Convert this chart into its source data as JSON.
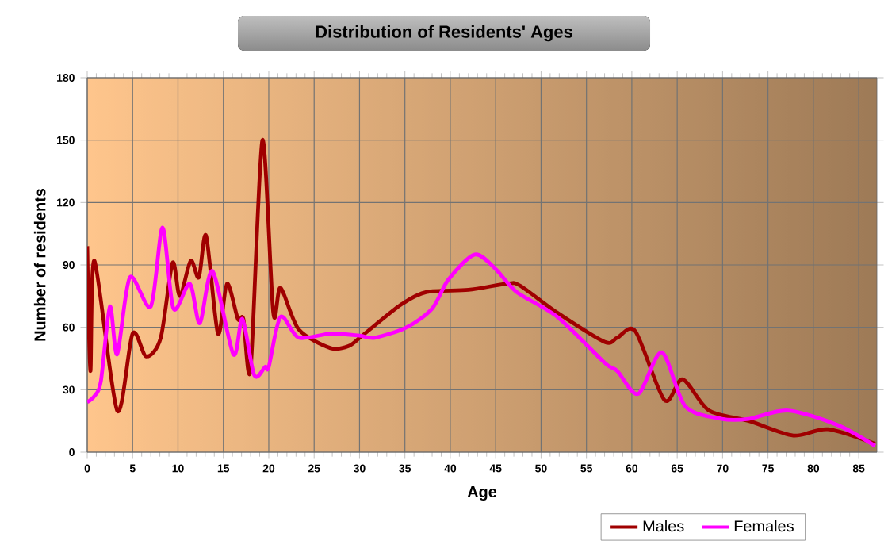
{
  "chart_data": {
    "type": "line",
    "title": "Distribution of Residents' Ages",
    "xlabel": "Age",
    "ylabel": "Number of residents",
    "xlim": [
      0,
      87
    ],
    "ylim": [
      0,
      180
    ],
    "xticks": [
      0,
      5,
      10,
      15,
      20,
      25,
      30,
      35,
      40,
      45,
      50,
      55,
      60,
      65,
      70,
      75,
      80,
      85
    ],
    "yticks": [
      0,
      30,
      60,
      90,
      120,
      150,
      180
    ],
    "grid": true,
    "legend": "bottom right",
    "series": [
      {
        "name": "Males",
        "color": "#a00000",
        "x": [
          0,
          0.35,
          0.8,
          3.3,
          5,
          6.5,
          8.1,
          9.4,
          10.2,
          11.4,
          12.3,
          13.1,
          14.4,
          15.4,
          16.6,
          17.2,
          18,
          19.3,
          20.5,
          21.3,
          23.3,
          26.8,
          28.8,
          30.3,
          34.6,
          37.4,
          42,
          46.3,
          47.7,
          51.8,
          57,
          58.4,
          60.4,
          63.6,
          65.6,
          68.5,
          72.9,
          77.8,
          81.6,
          86.8
        ],
        "values": [
          99,
          39,
          92,
          20,
          57,
          46,
          55,
          91,
          75,
          92,
          84,
          104,
          57,
          81,
          64,
          64,
          40,
          150,
          67,
          79,
          59,
          50,
          51,
          56,
          71,
          77,
          78,
          81,
          80,
          67,
          53,
          55,
          58,
          25,
          35,
          20,
          15,
          8,
          11,
          4
        ]
      },
      {
        "name": "Females",
        "color": "#ff00ff",
        "x": [
          0,
          0.8,
          1.5,
          2.5,
          3.3,
          4.7,
          7,
          8.3,
          9.5,
          11.3,
          12.4,
          13.8,
          16.1,
          17.1,
          18.4,
          19.6,
          20,
          21.3,
          23.3,
          26.8,
          30,
          31.7,
          35.2,
          38,
          39.8,
          42.7,
          45,
          47.3,
          51.8,
          57,
          58.4,
          60.7,
          63.3,
          65.9,
          69.9,
          72.9,
          77.2,
          82.7,
          86.8
        ],
        "values": [
          24,
          27,
          34,
          70,
          47,
          84,
          70,
          108,
          69,
          81,
          62,
          87,
          47,
          64,
          37,
          41,
          41,
          65,
          55,
          57,
          56,
          55,
          60,
          69,
          83,
          95,
          88,
          77,
          65,
          43,
          39,
          28,
          48,
          22,
          16,
          16,
          20,
          13,
          3
        ]
      }
    ]
  }
}
